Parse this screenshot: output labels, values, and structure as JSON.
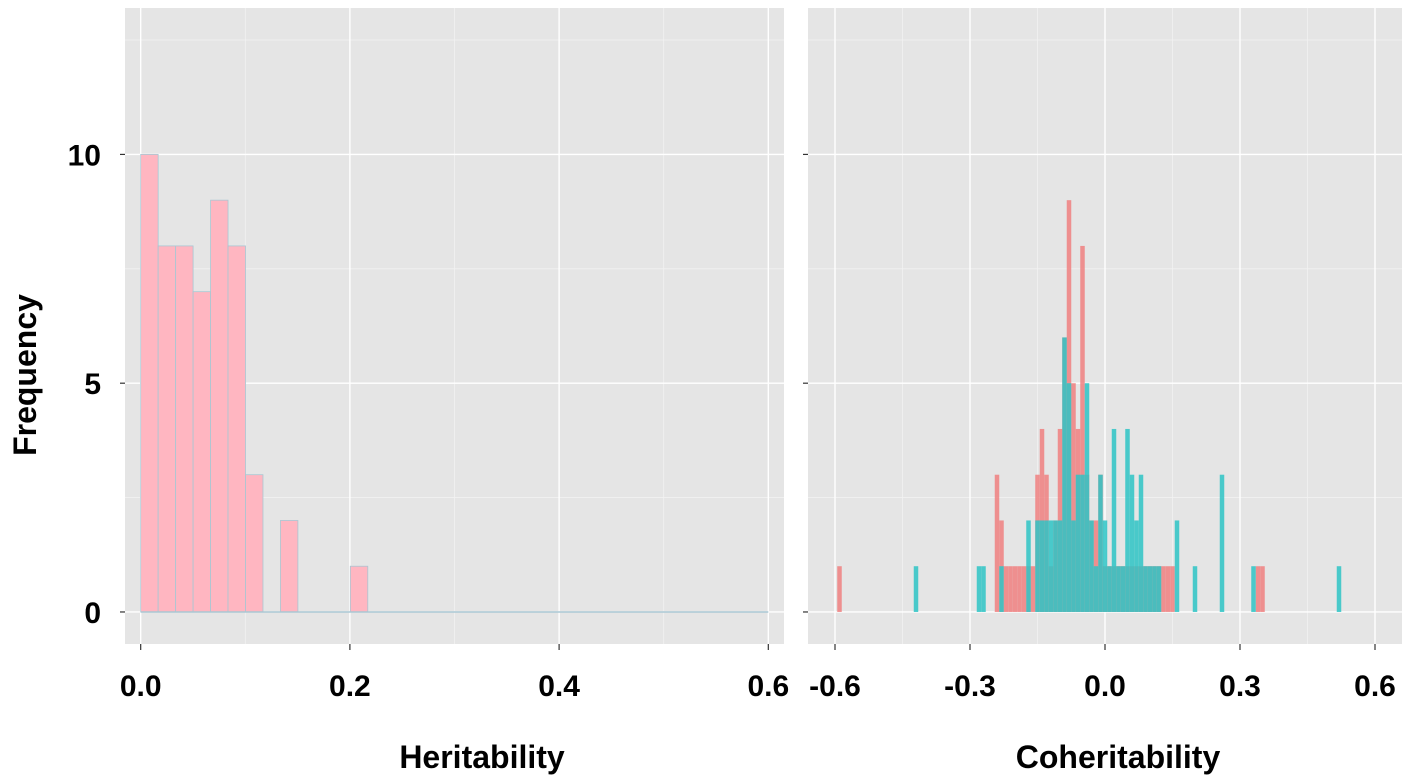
{
  "chart_data": [
    {
      "type": "bar",
      "panel": "left",
      "xlabel": "Heritability",
      "ylabel": "Frequency",
      "xlim": [
        -0.015,
        0.615
      ],
      "ylim": [
        -0.7,
        13.2
      ],
      "x_ticks": [
        "0.0",
        "0.2",
        "0.4",
        "0.6"
      ],
      "y_ticks": [
        "0",
        "5",
        "10"
      ],
      "grid": true,
      "bin_width": 0.0167,
      "bin_edges": [
        0.0,
        0.6
      ],
      "series": [
        {
          "color": "#ffb6c1",
          "counts": [
            10,
            8,
            8,
            7,
            9,
            8,
            3,
            0,
            2,
            0,
            0,
            0,
            1,
            0,
            0,
            0,
            0,
            0,
            0,
            0,
            0,
            0,
            0,
            0,
            0,
            0,
            0,
            0,
            0,
            0,
            0,
            0,
            0,
            0,
            0,
            0
          ]
        }
      ]
    },
    {
      "type": "bar",
      "panel": "right",
      "xlabel": "Coheritability",
      "ylabel": "",
      "xlim": [
        -0.66,
        0.66
      ],
      "ylim": [
        -0.7,
        13.2
      ],
      "x_ticks": [
        "-0.6",
        "-0.3",
        "0.0",
        "0.3",
        "0.6"
      ],
      "grid": true,
      "bin_width": 0.01,
      "series": [
        {
          "color": "#f08080",
          "points": [
            [
              -0.59,
              1
            ],
            [
              -0.24,
              3
            ],
            [
              -0.23,
              2
            ],
            [
              -0.22,
              1
            ],
            [
              -0.21,
              1
            ],
            [
              -0.2,
              1
            ],
            [
              -0.19,
              1
            ],
            [
              -0.18,
              1
            ],
            [
              -0.17,
              1
            ],
            [
              -0.16,
              1
            ],
            [
              -0.15,
              3
            ],
            [
              -0.14,
              4
            ],
            [
              -0.13,
              3
            ],
            [
              -0.12,
              1
            ],
            [
              -0.11,
              2
            ],
            [
              -0.1,
              4
            ],
            [
              -0.09,
              6
            ],
            [
              -0.08,
              9
            ],
            [
              -0.07,
              5
            ],
            [
              -0.06,
              4
            ],
            [
              -0.05,
              8
            ],
            [
              -0.04,
              3
            ],
            [
              -0.03,
              2
            ],
            [
              -0.02,
              2
            ],
            [
              -0.01,
              3
            ],
            [
              0.0,
              1
            ],
            [
              0.01,
              1
            ],
            [
              0.02,
              1
            ],
            [
              0.03,
              1
            ],
            [
              0.04,
              1
            ],
            [
              0.05,
              1
            ],
            [
              0.06,
              1
            ],
            [
              0.07,
              1
            ],
            [
              0.08,
              1
            ],
            [
              0.09,
              1
            ],
            [
              0.1,
              1
            ],
            [
              0.11,
              1
            ],
            [
              0.12,
              1
            ],
            [
              0.13,
              1
            ],
            [
              0.14,
              1
            ],
            [
              0.15,
              1
            ],
            [
              0.34,
              1
            ],
            [
              0.35,
              1
            ]
          ]
        },
        {
          "color": "#2ec4c6",
          "points": [
            [
              -0.42,
              1
            ],
            [
              -0.28,
              1
            ],
            [
              -0.27,
              1
            ],
            [
              -0.23,
              1
            ],
            [
              -0.17,
              2
            ],
            [
              -0.15,
              2
            ],
            [
              -0.14,
              2
            ],
            [
              -0.13,
              2
            ],
            [
              -0.12,
              2
            ],
            [
              -0.11,
              2
            ],
            [
              -0.1,
              2
            ],
            [
              -0.09,
              6
            ],
            [
              -0.08,
              5
            ],
            [
              -0.07,
              2
            ],
            [
              -0.06,
              3
            ],
            [
              -0.05,
              3
            ],
            [
              -0.04,
              5
            ],
            [
              -0.03,
              2
            ],
            [
              -0.02,
              1
            ],
            [
              -0.01,
              3
            ],
            [
              0.0,
              2
            ],
            [
              0.01,
              1
            ],
            [
              0.02,
              4
            ],
            [
              0.03,
              1
            ],
            [
              0.04,
              1
            ],
            [
              0.05,
              4
            ],
            [
              0.06,
              3
            ],
            [
              0.07,
              2
            ],
            [
              0.08,
              3
            ],
            [
              0.09,
              1
            ],
            [
              0.1,
              1
            ],
            [
              0.11,
              1
            ],
            [
              0.12,
              1
            ],
            [
              0.16,
              2
            ],
            [
              0.2,
              1
            ],
            [
              0.26,
              3
            ],
            [
              0.33,
              1
            ],
            [
              0.52,
              1
            ]
          ]
        }
      ]
    }
  ]
}
